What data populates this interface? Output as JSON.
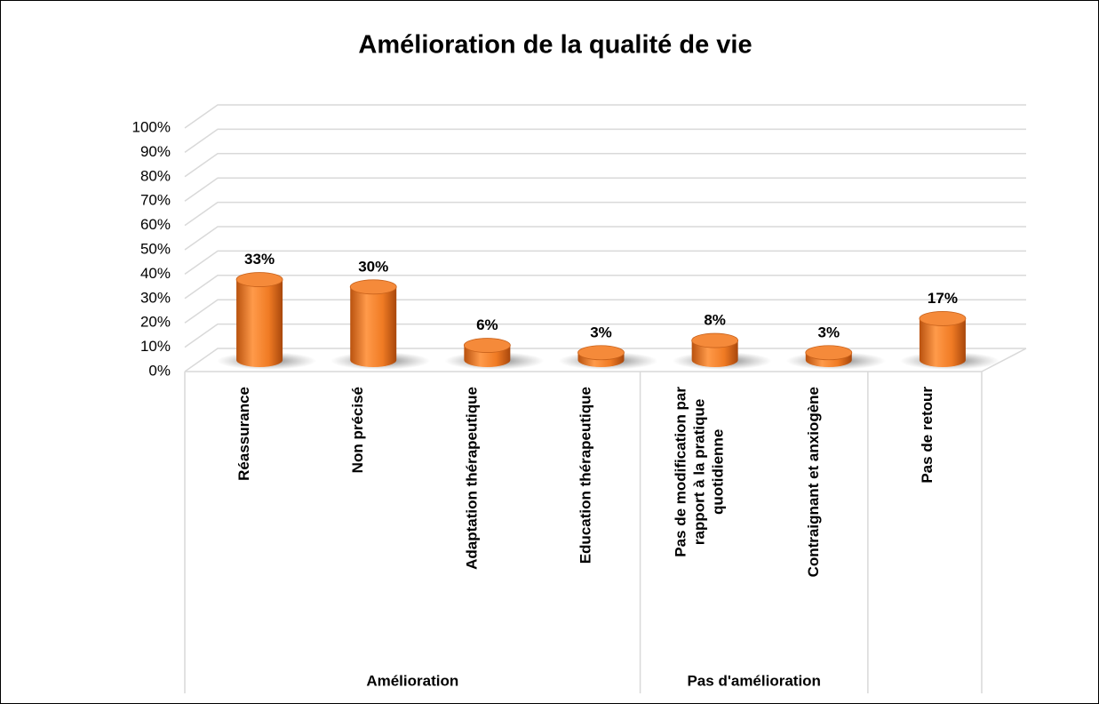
{
  "chart_data": {
    "type": "bar3d",
    "title": "Amélioration de la qualité de vie",
    "categories": [
      "Réassurance",
      "Non précisé",
      "Adaptation thérapeutique",
      "Education thérapeutique",
      "Pas de modification par rapport à la pratique quotidienne",
      "Contraignant et anxiogène",
      "Pas de retour"
    ],
    "category_groups": [
      "Amélioration",
      "Amélioration",
      "Amélioration",
      "Amélioration",
      "Pas d'amélioration",
      "Pas d'amélioration",
      null
    ],
    "values": [
      33,
      30,
      6,
      3,
      8,
      3,
      17
    ],
    "value_labels": [
      "33%",
      "30%",
      "6%",
      "3%",
      "8%",
      "3%",
      "17%"
    ],
    "color": "#f07b24",
    "ylim": [
      0,
      100
    ],
    "yticks": [
      {
        "value": 0,
        "label": "0%"
      },
      {
        "value": 10,
        "label": "10%"
      },
      {
        "value": 20,
        "label": "20%"
      },
      {
        "value": 30,
        "label": "30%"
      },
      {
        "value": 40,
        "label": "40%"
      },
      {
        "value": 50,
        "label": "50%"
      },
      {
        "value": 60,
        "label": "60%"
      },
      {
        "value": 70,
        "label": "70%"
      },
      {
        "value": 80,
        "label": "80%"
      },
      {
        "value": 90,
        "label": "90%"
      },
      {
        "value": 100,
        "label": "100%"
      }
    ],
    "grid": true
  }
}
